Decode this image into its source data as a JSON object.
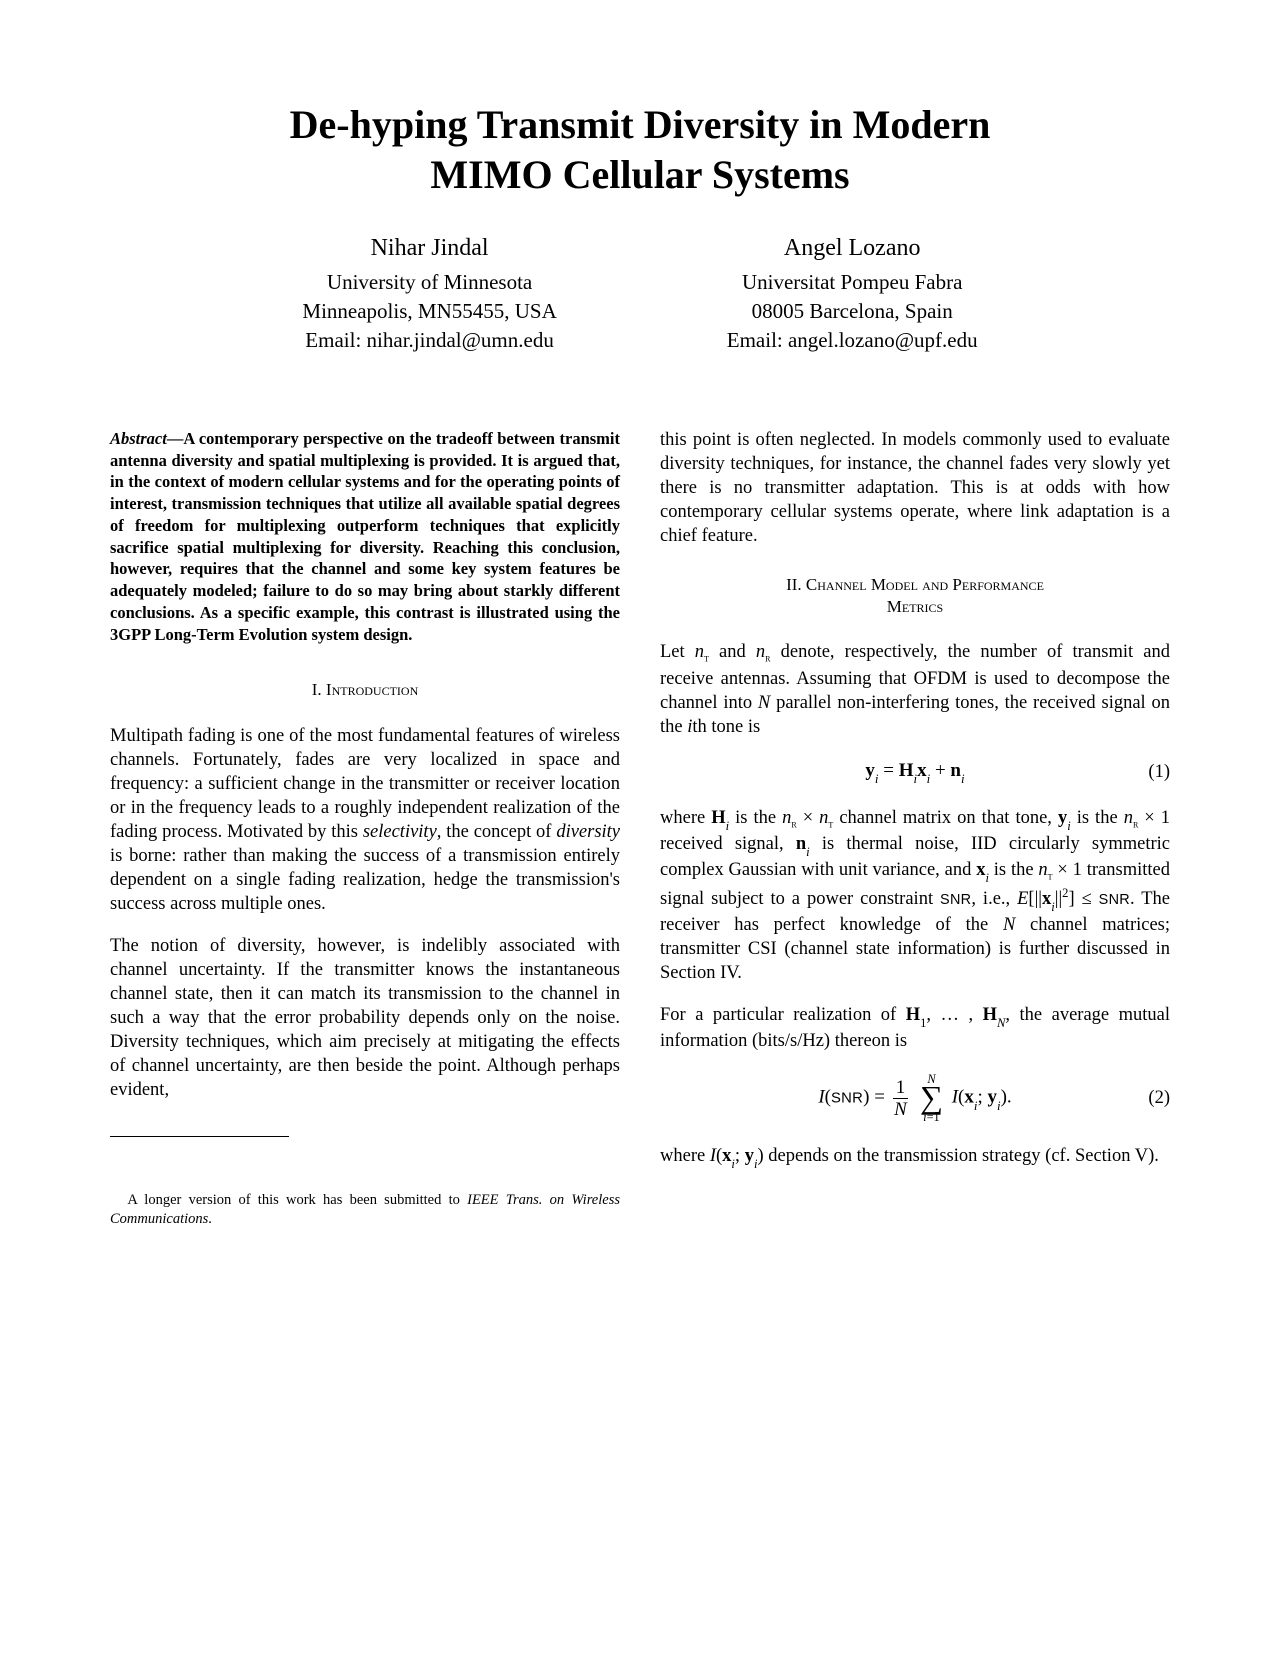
{
  "title_line1": "De-hyping Transmit Diversity in Modern",
  "title_line2": "MIMO Cellular Systems",
  "authors": [
    {
      "name": "Nihar Jindal",
      "affil": "University of Minnesota",
      "addr": "Minneapolis, MN55455, USA",
      "email": "Email: nihar.jindal@umn.edu"
    },
    {
      "name": "Angel Lozano",
      "affil": "Universitat Pompeu Fabra",
      "addr": "08005 Barcelona, Spain",
      "email": "Email: angel.lozano@upf.edu"
    }
  ],
  "abstract_label": "Abstract",
  "abstract_text": "—A contemporary perspective on the tradeoff between transmit antenna diversity and spatial multiplexing is provided. It is argued that, in the context of modern cellular systems and for the operating points of interest, transmission techniques that utilize all available spatial degrees of freedom for multiplexing outperform techniques that explicitly sacrifice spatial multiplexing for diversity. Reaching this conclusion, however, requires that the channel and some key system features be adequately modeled; failure to do so may bring about starkly different conclusions. As a specific example, this contrast is illustrated using the 3GPP Long-Term Evolution system design.",
  "sec1_num": "I.",
  "sec1_title": "Introduction",
  "intro_p1a": "Multipath fading is one of the most fundamental features of wireless channels. Fortunately, fades are very localized in space and frequency: a sufficient change in the transmitter or receiver location or in the frequency leads to a roughly independent realization of the fading process. Motivated by this ",
  "intro_p1_sel": "selectivity",
  "intro_p1b": ", the concept of ",
  "intro_p1_div": "diversity",
  "intro_p1c": " is borne: rather than making the success of a transmission entirely dependent on a single fading realization, hedge the transmission's success across multiple ones.",
  "intro_p2": "The notion of diversity, however, is indelibly associated with channel uncertainty. If the transmitter knows the instantaneous channel state, then it can match its transmission to the channel in such a way that the error probability depends only on the noise. Diversity techniques, which aim precisely at mitigating the effects of channel uncertainty, are then beside the point. Although perhaps evident,",
  "footnote_a": "A longer version of this work has been submitted to ",
  "footnote_b": "IEEE Trans. on Wireless Communications",
  "footnote_c": ".",
  "col2_p1": "this point is often neglected. In models commonly used to evaluate diversity techniques, for instance, the channel fades very slowly yet there is no transmitter adaptation. This is at odds with how contemporary cellular systems operate, where link adaptation is a chief feature.",
  "sec2_num": "II.",
  "sec2_title_a": "Channel Model and Performance",
  "sec2_title_b": "Metrics",
  "col2_p2a": "Let ",
  "col2_p2b": " and ",
  "col2_p2c": " denote, respectively, the number of transmit and receive antennas. Assuming that OFDM is used to decompose the channel into ",
  "col2_p2d": " parallel non-interfering tones, the received signal on the ",
  "col2_p2e": "th tone is",
  "eq1_num": "(1)",
  "col2_p3a": "where ",
  "col2_p3b": " is the ",
  "col2_p3c": " channel matrix on that tone, ",
  "col2_p3d": " is the ",
  "col2_p3e": " received signal, ",
  "col2_p3f": " is thermal noise, IID circularly symmetric complex Gaussian with unit variance, and ",
  "col2_p3g": " is the ",
  "col2_p3h": " transmitted signal subject to a power constraint ",
  "col2_p3i": ", i.e., ",
  "col2_p3j": ". The receiver has perfect knowledge of the ",
  "col2_p3k": " channel matrices; transmitter CSI (channel state information) is further discussed in Section IV.",
  "col2_p4a": "For a particular realization of ",
  "col2_p4b": ", the average mutual information (bits/s/Hz) thereon is",
  "eq2_num": "(2)",
  "col2_p5a": "where ",
  "col2_p5b": " depends on the transmission strategy (cf. Section V).",
  "colors": {
    "text": "#000000",
    "background": "#ffffff"
  },
  "bind_placeholder": ""
}
